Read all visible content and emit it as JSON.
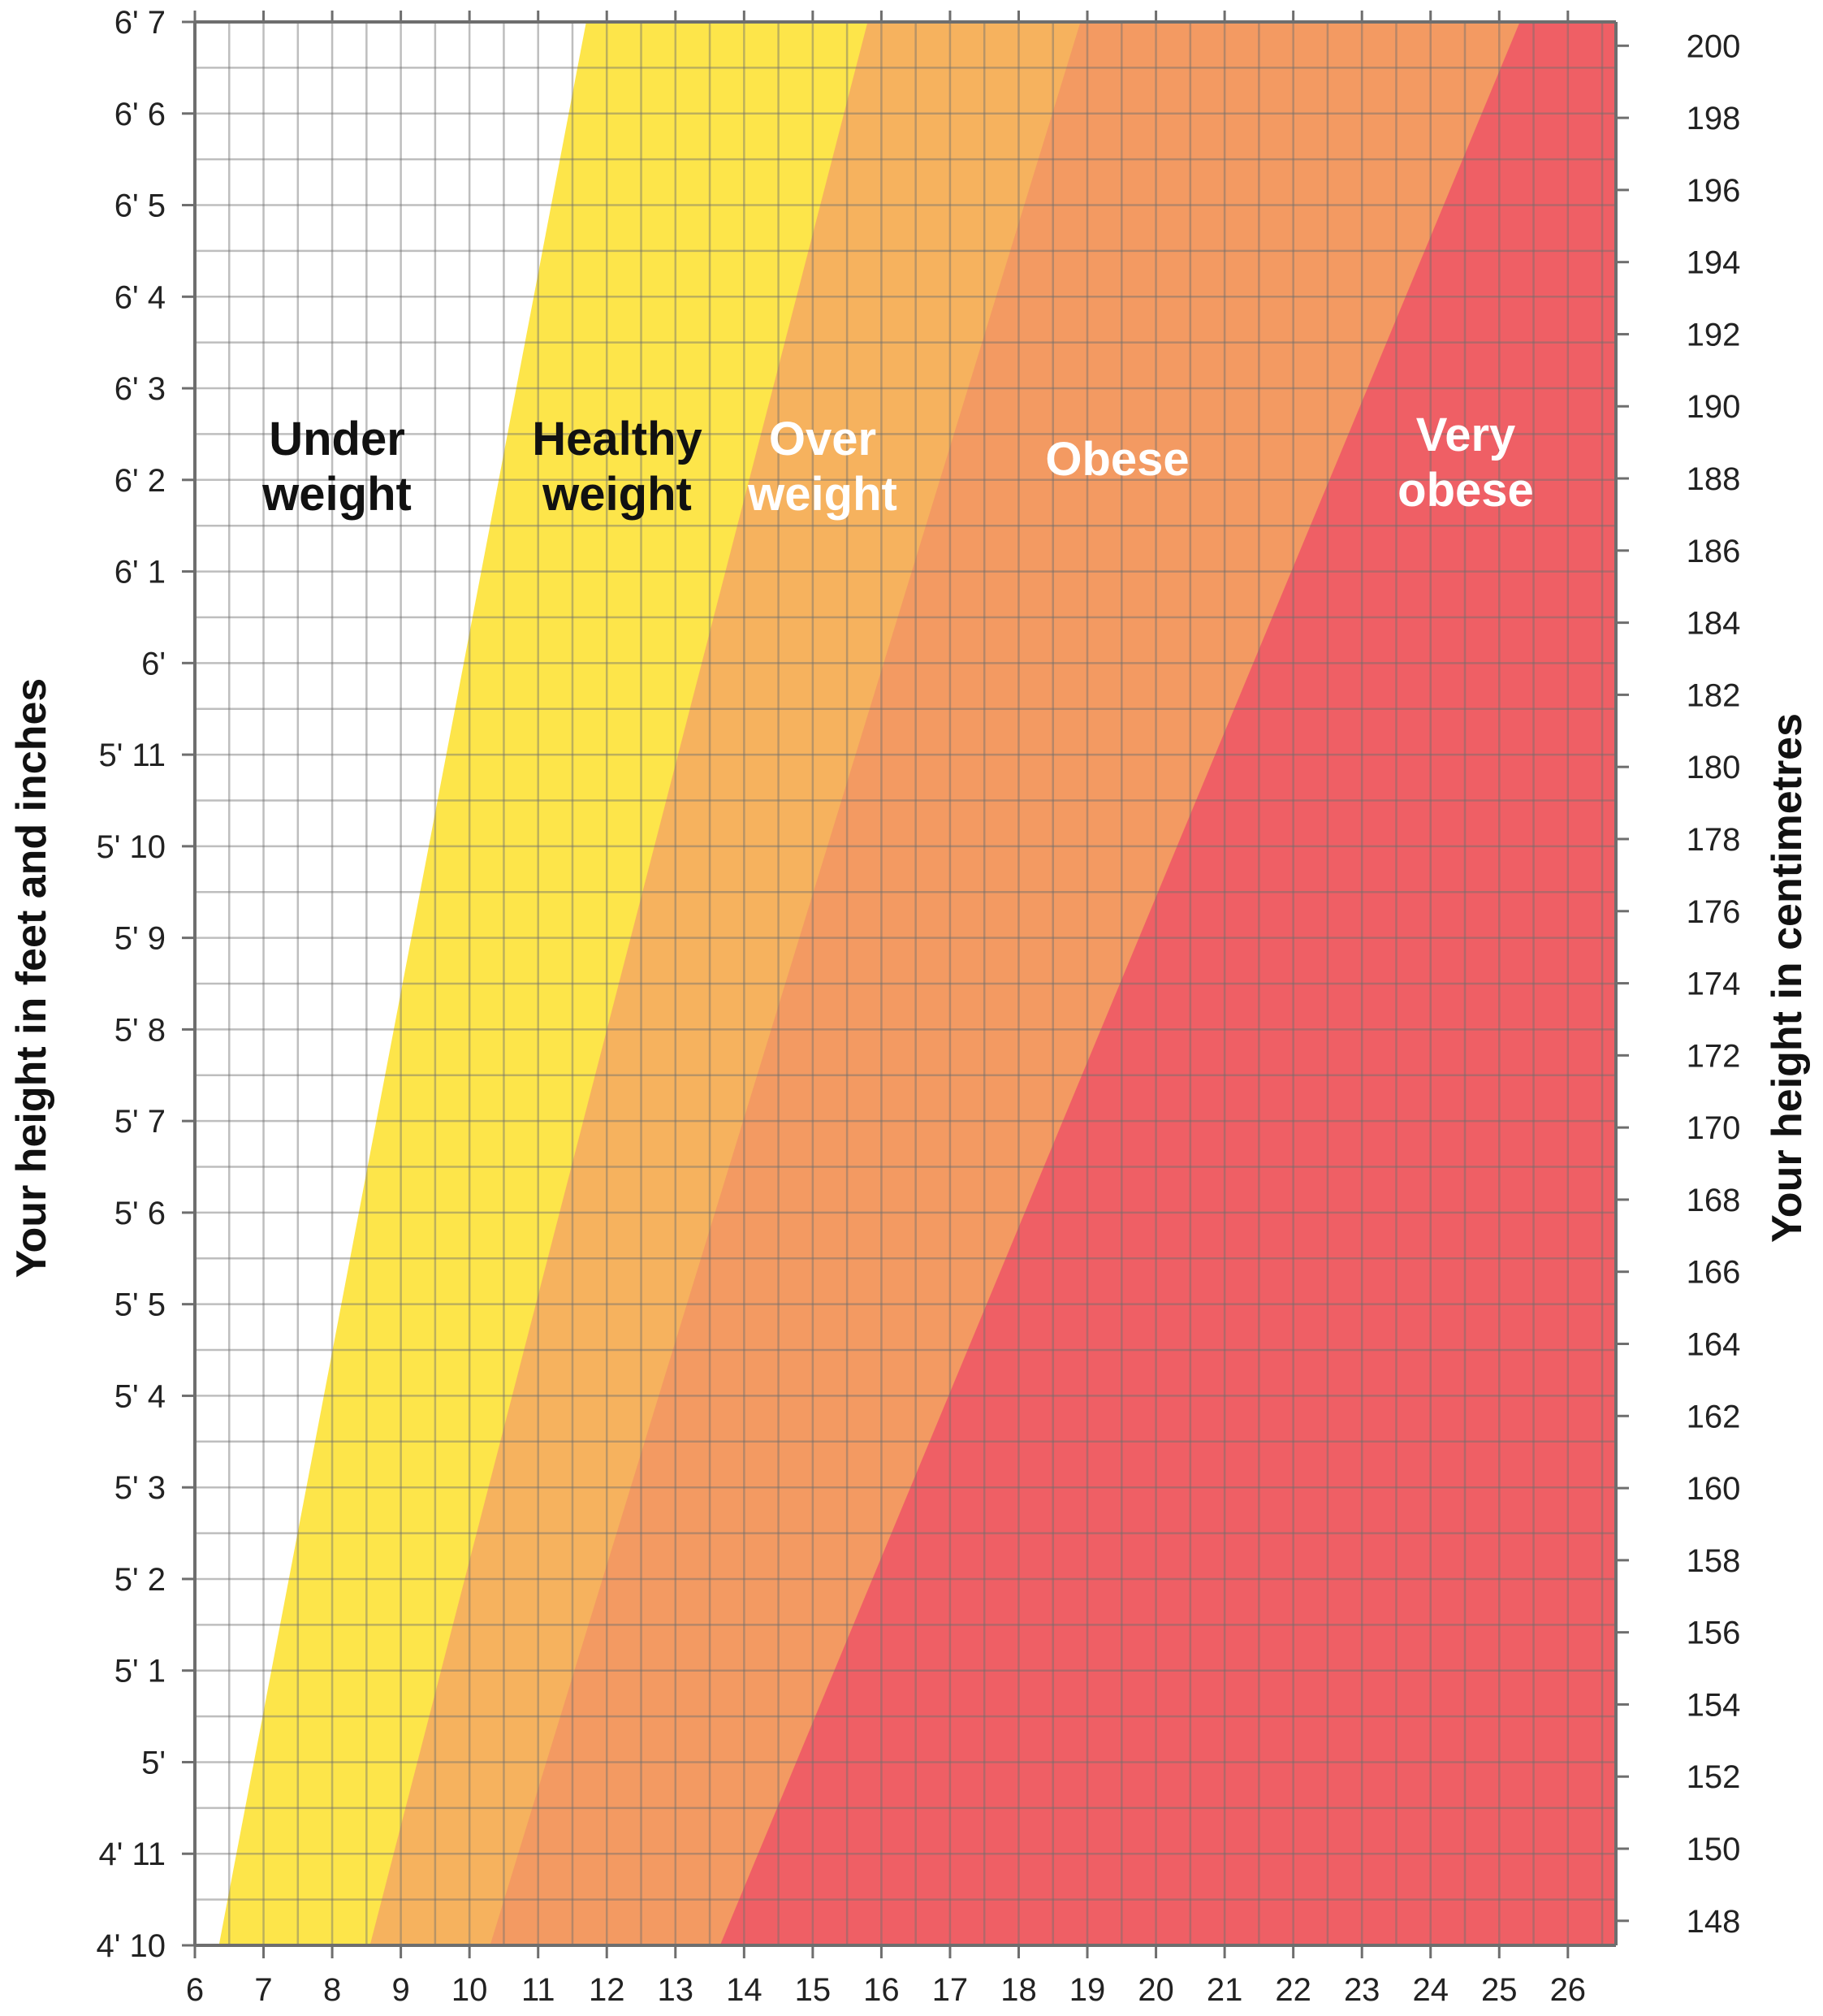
{
  "chart_data": {
    "type": "area",
    "title": "",
    "xlabel": "",
    "ylabel_left": "Your height in feet and inches",
    "ylabel_right": "Your height in centimetres",
    "xlim": [
      6,
      26.7
    ],
    "ylim_inches": [
      58,
      79
    ],
    "ylim_cm": [
      147.32,
      200.66
    ],
    "x_ticks": [
      "6",
      "7",
      "8",
      "9",
      "10",
      "11",
      "12",
      "13",
      "14",
      "15",
      "16",
      "17",
      "18",
      "19",
      "20",
      "21",
      "22",
      "23",
      "24",
      "25",
      "26"
    ],
    "y_ticks_left": [
      "4' 10",
      "4' 11",
      "5'",
      "5' 1",
      "5' 2",
      "5' 3",
      "5' 4",
      "5' 5",
      "5' 6",
      "5' 7",
      "5' 8",
      "5' 9",
      "5' 10",
      "5' 11",
      "6'",
      "6' 1",
      "6' 2",
      "6' 3",
      "6' 4",
      "6' 5",
      "6' 6",
      "6' 7"
    ],
    "y_ticks_right": [
      "148",
      "150",
      "152",
      "154",
      "156",
      "158",
      "160",
      "162",
      "164",
      "166",
      "168",
      "170",
      "172",
      "174",
      "176",
      "178",
      "180",
      "182",
      "184",
      "186",
      "188",
      "190",
      "192",
      "194",
      "196",
      "198",
      "200"
    ],
    "grid": true,
    "bands": [
      {
        "name": "Under weight",
        "label_lines": [
          "Under",
          "weight"
        ],
        "color": "#ffffff",
        "text_color": "#111111",
        "boundary_bottom_x": 6.35,
        "boundary_top_x": 11.7
      },
      {
        "name": "Healthy weight",
        "label_lines": [
          "Healthy",
          "weight"
        ],
        "color": "#fde54a",
        "text_color": "#111111",
        "boundary_bottom_x": 8.55,
        "boundary_top_x": 15.8
      },
      {
        "name": "Over weight",
        "label_lines": [
          "Over",
          "weight"
        ],
        "color": "#f6b25e",
        "text_color": "#ffffff",
        "boundary_bottom_x": 10.3,
        "boundary_top_x": 18.9
      },
      {
        "name": "Obese",
        "label_lines": [
          "Obese"
        ],
        "color": "#f39a62",
        "text_color": "#ffffff",
        "boundary_bottom_x": 13.65,
        "boundary_top_x": 25.3
      },
      {
        "name": "Very obese",
        "label_lines": [
          "Very",
          "obese"
        ],
        "color": "#ef5f65",
        "text_color": "#ffffff",
        "boundary_bottom_x": null,
        "boundary_top_x": null
      }
    ]
  }
}
